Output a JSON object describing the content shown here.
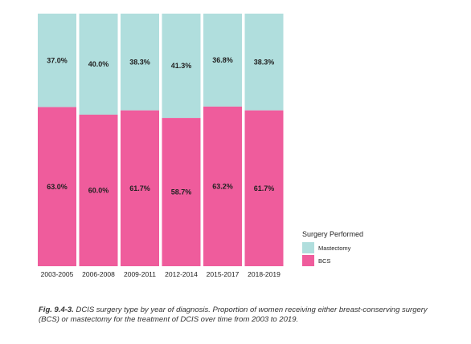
{
  "chart_data": {
    "type": "bar",
    "stacked": true,
    "categories": [
      "2003-2005",
      "2006-2008",
      "2009-2011",
      "2012-2014",
      "2015-2017",
      "2018-2019"
    ],
    "series": [
      {
        "name": "BCS",
        "values": [
          63.0,
          60.0,
          61.7,
          58.7,
          63.2,
          61.7
        ],
        "labels": [
          "63.0%",
          "60.0%",
          "61.7%",
          "58.7%",
          "63.2%",
          "61.7%"
        ]
      },
      {
        "name": "Mastectomy",
        "values": [
          37.0,
          40.0,
          38.3,
          41.3,
          36.8,
          38.3
        ],
        "labels": [
          "37.0%",
          "40.0%",
          "38.3%",
          "41.3%",
          "36.8%",
          "38.3%"
        ]
      }
    ],
    "ylim": [
      0,
      100
    ],
    "legend": {
      "title": "Surgery Performed",
      "placement": "right",
      "items": [
        "Mastectomy",
        "BCS"
      ]
    },
    "colors": {
      "Mastectomy": "#b0dedd",
      "BCS": "#ef5c9c"
    }
  },
  "caption": {
    "figure_label": "Fig. 9.4-3.",
    "text": " DCIS surgery type by year of diagnosis. Proportion of women receiving either breast-conserving surgery (BCS) or mastectomy for the treatment of DCIS over time from 2003 to 2019."
  }
}
